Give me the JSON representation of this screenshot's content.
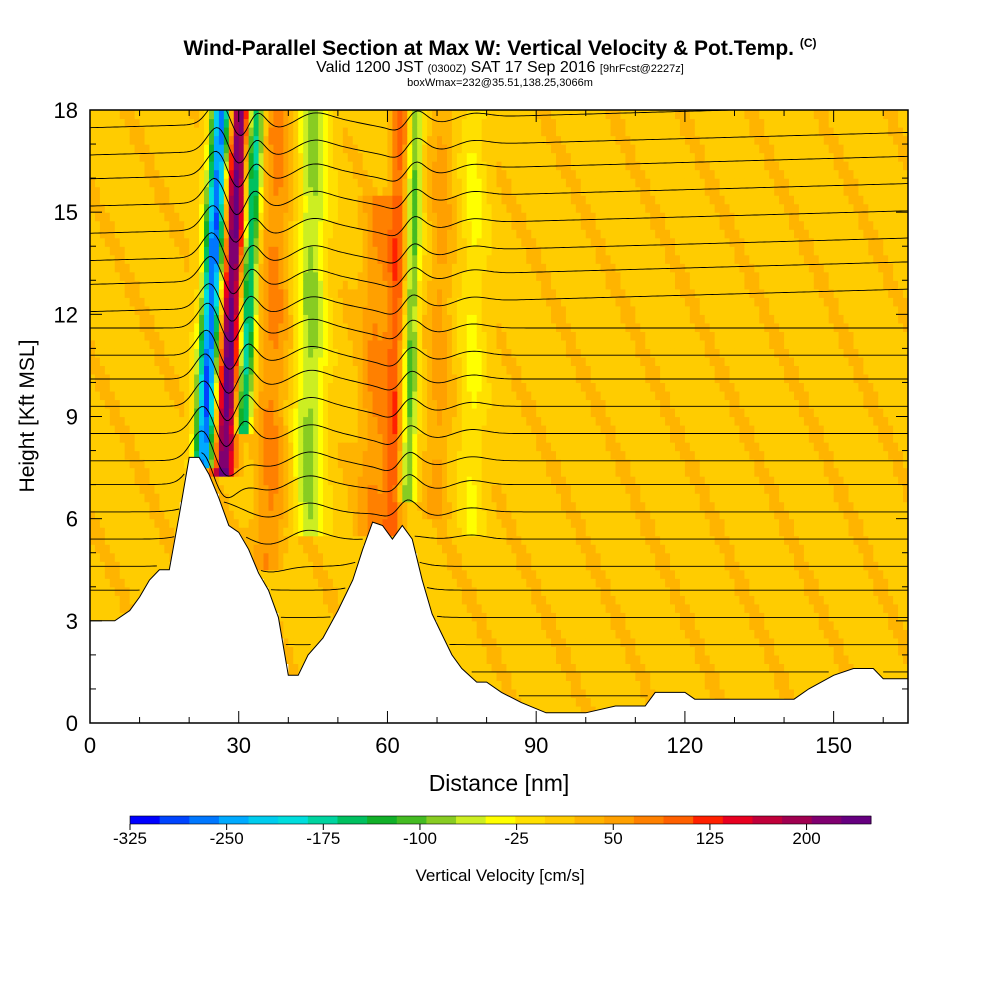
{
  "chart_data": {
    "type": "heatmap",
    "title": "Wind-Parallel Section at Max W: Vertical Velocity & Pot.Temp.",
    "title_mark": "(C)",
    "subtitle_main": "Valid 1200 JST",
    "subtitle_utc": "(0300Z)",
    "subtitle_date": "SAT 17 Sep 2016",
    "subtitle_fcst": "[9hrFcst@2227z]",
    "sub_subtitle": "boxWmax=232@35.51,138.25,3066m",
    "xlabel": "Distance [nm]",
    "ylabel": "Height [Kft MSL]",
    "xlim": [
      0,
      165
    ],
    "ylim": [
      0,
      18
    ],
    "x_ticks": [
      "0",
      "30",
      "60",
      "90",
      "120",
      "150"
    ],
    "y_ticks": [
      "0",
      "3",
      "6",
      "9",
      "12",
      "15",
      "18"
    ],
    "x_tick_values": [
      0,
      30,
      60,
      90,
      120,
      150
    ],
    "y_tick_values": [
      0,
      3,
      6,
      9,
      12,
      15,
      18
    ],
    "colorbar": {
      "label": "Vertical Velocity [cm/s]",
      "tick_labels": [
        "-325",
        "-250",
        "-175",
        "-100",
        "-25",
        "50",
        "125",
        "200"
      ],
      "tick_values": [
        -325,
        -250,
        -175,
        -100,
        -25,
        50,
        125,
        200
      ],
      "range": [
        -325,
        250
      ],
      "colors": [
        "#0000ff",
        "#0044ff",
        "#0077ff",
        "#00aaff",
        "#00ccee",
        "#00dddd",
        "#00d4a0",
        "#00c060",
        "#11b029",
        "#44bb22",
        "#88cc22",
        "#ccee22",
        "#ffff00",
        "#ffe000",
        "#ffcc00",
        "#ffb400",
        "#ffa000",
        "#ff8000",
        "#ff6000",
        "#ff2000",
        "#e80020",
        "#c0003a",
        "#a00050",
        "#800070",
        "#660080"
      ]
    },
    "terrain_kft": [
      [
        0,
        3.0
      ],
      [
        5,
        3.0
      ],
      [
        8,
        3.3
      ],
      [
        10,
        3.7
      ],
      [
        12,
        4.2
      ],
      [
        14,
        4.5
      ],
      [
        16,
        4.5
      ],
      [
        18,
        6.1
      ],
      [
        20,
        7.8
      ],
      [
        22,
        7.8
      ],
      [
        24,
        7.3
      ],
      [
        26,
        6.6
      ],
      [
        28,
        5.8
      ],
      [
        30,
        5.6
      ],
      [
        32,
        5.1
      ],
      [
        34,
        4.4
      ],
      [
        36,
        3.9
      ],
      [
        38,
        3.1
      ],
      [
        40,
        1.4
      ],
      [
        42,
        1.4
      ],
      [
        44,
        2.0
      ],
      [
        47,
        2.5
      ],
      [
        50,
        3.3
      ],
      [
        53,
        4.2
      ],
      [
        55,
        5.1
      ],
      [
        57,
        5.9
      ],
      [
        59,
        5.8
      ],
      [
        61,
        5.4
      ],
      [
        63,
        5.8
      ],
      [
        65,
        5.4
      ],
      [
        67,
        4.2
      ],
      [
        69,
        3.2
      ],
      [
        71,
        2.6
      ],
      [
        73,
        2.0
      ],
      [
        75,
        1.6
      ],
      [
        78,
        1.2
      ],
      [
        80,
        1.2
      ],
      [
        83,
        0.9
      ],
      [
        87,
        0.6
      ],
      [
        92,
        0.3
      ],
      [
        100,
        0.3
      ],
      [
        106,
        0.5
      ],
      [
        112,
        0.5
      ],
      [
        114,
        0.9
      ],
      [
        120,
        0.9
      ],
      [
        122,
        0.7
      ],
      [
        130,
        0.7
      ],
      [
        142,
        0.7
      ],
      [
        145,
        1.0
      ],
      [
        150,
        1.4
      ],
      [
        154,
        1.6
      ],
      [
        158,
        1.6
      ],
      [
        160,
        1.3
      ],
      [
        165,
        1.3
      ]
    ],
    "theta_isentrope_heights_kft": [
      0.8,
      1.5,
      2.3,
      3.1,
      3.9,
      4.6,
      5.4,
      6.2,
      7.0,
      7.7,
      8.5,
      9.3,
      10.1,
      10.8,
      11.6,
      12.4,
      13.2,
      13.9,
      14.7,
      15.5,
      16.3,
      17.0,
      17.8
    ],
    "w_features": [
      {
        "x": 23,
        "z0": 7.8,
        "z1": 18,
        "tilt": 0.35,
        "halfwidth": 2.0,
        "w": -300
      },
      {
        "x": 27,
        "z0": 7.6,
        "z1": 18,
        "tilt": 0.3,
        "halfwidth": 2.2,
        "w": 230
      },
      {
        "x": 31,
        "z0": 9.0,
        "z1": 18,
        "tilt": 0.28,
        "halfwidth": 1.6,
        "w": -200
      },
      {
        "x": 36,
        "z0": 5.0,
        "z1": 18,
        "tilt": 0.15,
        "halfwidth": 3.0,
        "w": 60
      },
      {
        "x": 44,
        "z0": 6.0,
        "z1": 18,
        "tilt": 0.1,
        "halfwidth": 3.0,
        "w": -90
      },
      {
        "x": 57,
        "z0": 6.0,
        "z1": 15,
        "tilt": 0.12,
        "halfwidth": 3.0,
        "w": 55
      },
      {
        "x": 61,
        "z0": 6.0,
        "z1": 18,
        "tilt": 0.15,
        "halfwidth": 2.0,
        "w": 90
      },
      {
        "x": 64,
        "z0": 7.0,
        "z1": 18,
        "tilt": 0.15,
        "halfwidth": 1.6,
        "w": -120
      },
      {
        "x": 70,
        "z0": 6.5,
        "z1": 18,
        "tilt": 0.1,
        "halfwidth": 2.2,
        "w": 40
      },
      {
        "x": 77,
        "z0": 6.0,
        "z1": 18,
        "tilt": 0.05,
        "halfwidth": 2.5,
        "w": -40
      }
    ],
    "grid": false
  }
}
